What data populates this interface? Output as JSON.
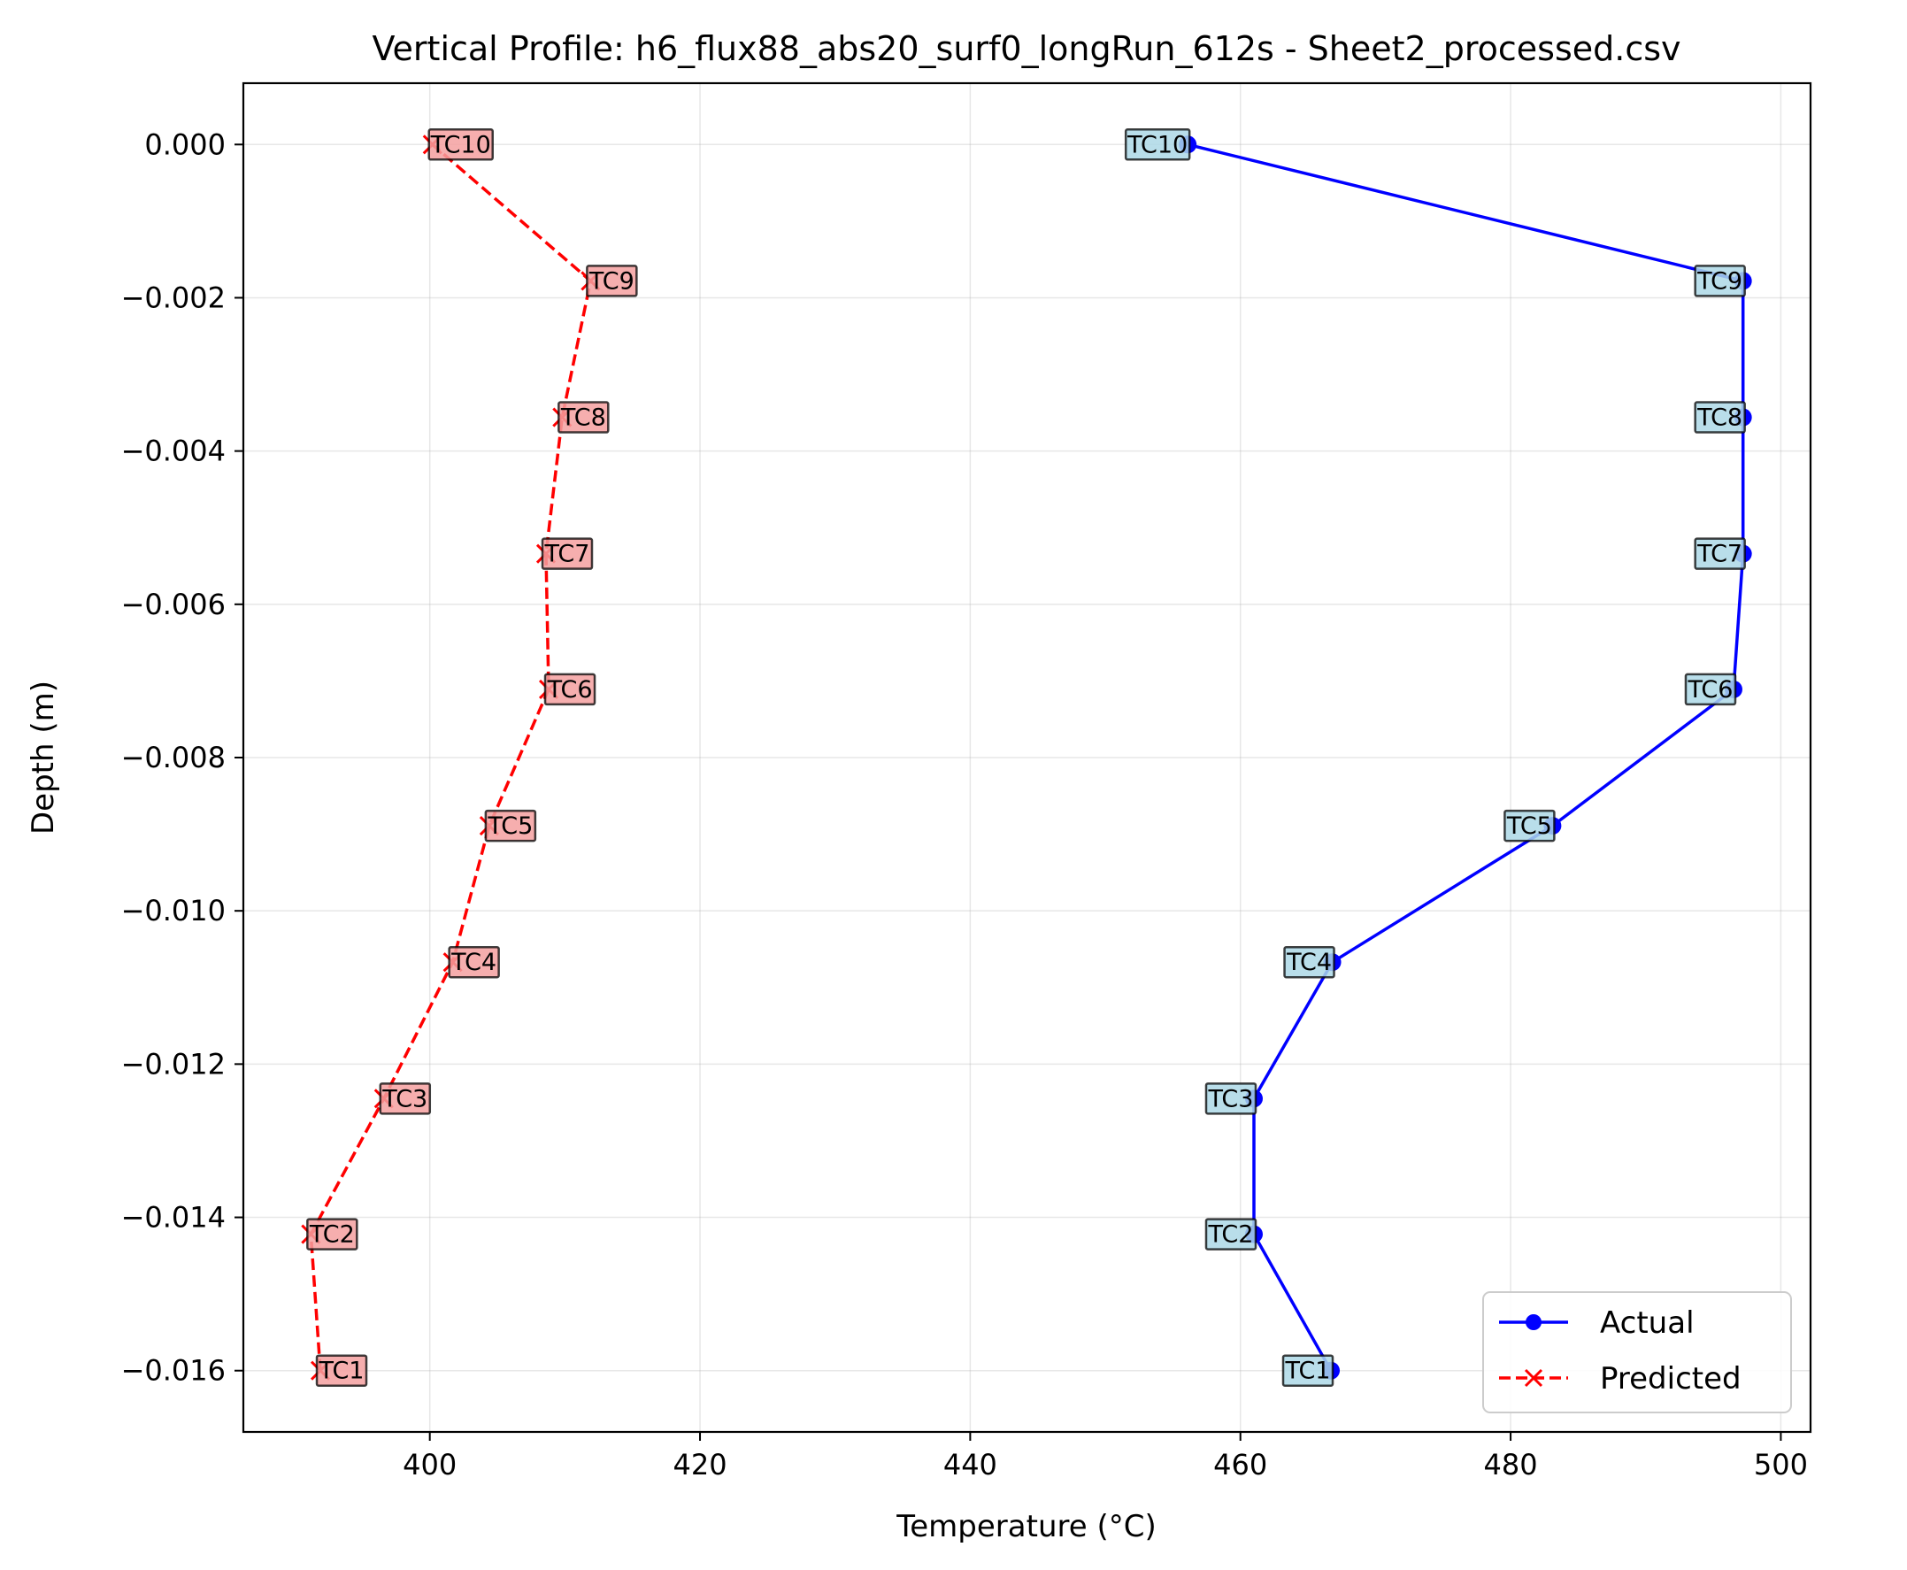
{
  "chart_data": {
    "type": "line",
    "title": "Vertical Profile: h6_flux88_abs20_surf0_longRun_612s - Sheet2_processed.csv",
    "xlabel": "Temperature (°C)",
    "ylabel": "Depth (m)",
    "xlim": [
      386.2,
      502.2
    ],
    "ylim": [
      -0.0168,
      0.0008
    ],
    "x_ticks": [
      400,
      420,
      440,
      460,
      480,
      500
    ],
    "x_tick_labels": [
      "400",
      "420",
      "440",
      "460",
      "480",
      "500"
    ],
    "y_ticks": [
      0.0,
      -0.002,
      -0.004,
      -0.006,
      -0.008,
      -0.01,
      -0.012,
      -0.014,
      -0.016
    ],
    "y_tick_labels": [
      "0.000",
      "−0.002",
      "−0.004",
      "−0.006",
      "−0.008",
      "−0.010",
      "−0.012",
      "−0.014",
      "−0.016"
    ],
    "grid": true,
    "legend_position": "bottom-right",
    "series": [
      {
        "name": "Actual",
        "color": "#0000ff",
        "line_style": "solid",
        "marker": "circle",
        "label_bg": "#add8e6",
        "points": [
          {
            "label": "TC1",
            "x": 466.7,
            "y": -0.016
          },
          {
            "label": "TC2",
            "x": 461.0,
            "y": -0.01422
          },
          {
            "label": "TC3",
            "x": 461.0,
            "y": -0.01245
          },
          {
            "label": "TC4",
            "x": 466.8,
            "y": -0.01067
          },
          {
            "label": "TC5",
            "x": 483.1,
            "y": -0.00889
          },
          {
            "label": "TC6",
            "x": 496.5,
            "y": -0.00711
          },
          {
            "label": "TC7",
            "x": 497.2,
            "y": -0.00534
          },
          {
            "label": "TC8",
            "x": 497.2,
            "y": -0.00356
          },
          {
            "label": "TC9",
            "x": 497.2,
            "y": -0.00178
          },
          {
            "label": "TC10",
            "x": 456.1,
            "y": 0.0
          }
        ]
      },
      {
        "name": "Predicted",
        "color": "#ff0000",
        "line_style": "dashed",
        "marker": "x",
        "label_bg": "#f4a0a0",
        "points": [
          {
            "label": "TC1",
            "x": 391.9,
            "y": -0.016
          },
          {
            "label": "TC2",
            "x": 391.2,
            "y": -0.01422
          },
          {
            "label": "TC3",
            "x": 396.6,
            "y": -0.01245
          },
          {
            "label": "TC4",
            "x": 401.7,
            "y": -0.01067
          },
          {
            "label": "TC5",
            "x": 404.4,
            "y": -0.00889
          },
          {
            "label": "TC6",
            "x": 408.8,
            "y": -0.00711
          },
          {
            "label": "TC7",
            "x": 408.6,
            "y": -0.00534
          },
          {
            "label": "TC8",
            "x": 409.8,
            "y": -0.00356
          },
          {
            "label": "TC9",
            "x": 411.9,
            "y": -0.00178
          },
          {
            "label": "TC10",
            "x": 400.2,
            "y": 0.0
          }
        ]
      }
    ]
  }
}
